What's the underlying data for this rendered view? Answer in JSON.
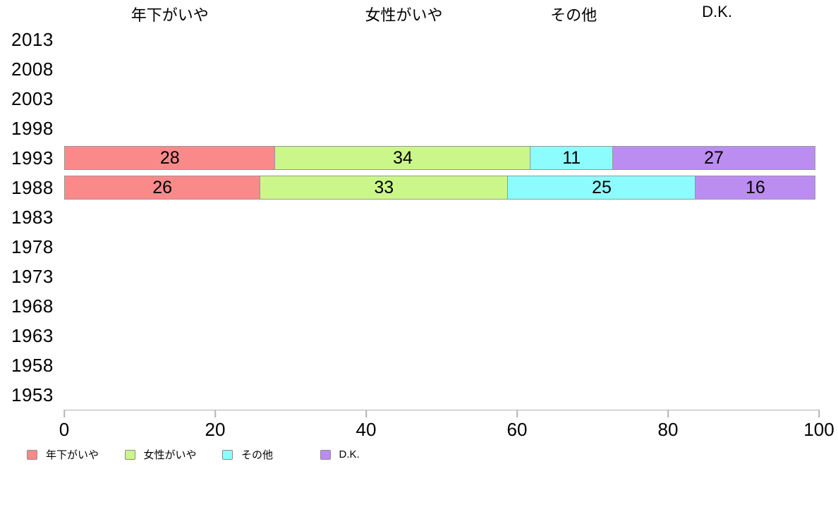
{
  "chart_data": {
    "type": "bar",
    "orientation": "horizontal-stacked",
    "title": "",
    "xlabel": "",
    "ylabel": "",
    "xlim": [
      0,
      100
    ],
    "x_ticks": [
      0,
      20,
      40,
      60,
      80,
      100
    ],
    "grid": false,
    "legend_position": "bottom",
    "categories": [
      "2013",
      "2008",
      "2003",
      "1998",
      "1993",
      "1988",
      "1983",
      "1978",
      "1973",
      "1968",
      "1963",
      "1958",
      "1953"
    ],
    "series": [
      {
        "name": "年下がいや",
        "color": "#fa8a8a",
        "values": [
          null,
          null,
          null,
          null,
          28,
          26,
          null,
          null,
          null,
          null,
          null,
          null,
          null
        ]
      },
      {
        "name": "女性がいや",
        "color": "#cbf78a",
        "values": [
          null,
          null,
          null,
          null,
          34,
          33,
          null,
          null,
          null,
          null,
          null,
          null,
          null
        ]
      },
      {
        "name": "その他",
        "color": "#8dfcff",
        "values": [
          null,
          null,
          null,
          null,
          11,
          25,
          null,
          null,
          null,
          null,
          null,
          null,
          null
        ]
      },
      {
        "name": "D.K.",
        "color": "#bc8df0",
        "values": [
          null,
          null,
          null,
          null,
          27,
          16,
          null,
          null,
          null,
          null,
          null,
          null,
          null
        ]
      }
    ]
  },
  "colors": {
    "bar_border": "#969696",
    "axis_line": "#b4b4b4",
    "text": "#000000",
    "background": "#ffffff"
  }
}
